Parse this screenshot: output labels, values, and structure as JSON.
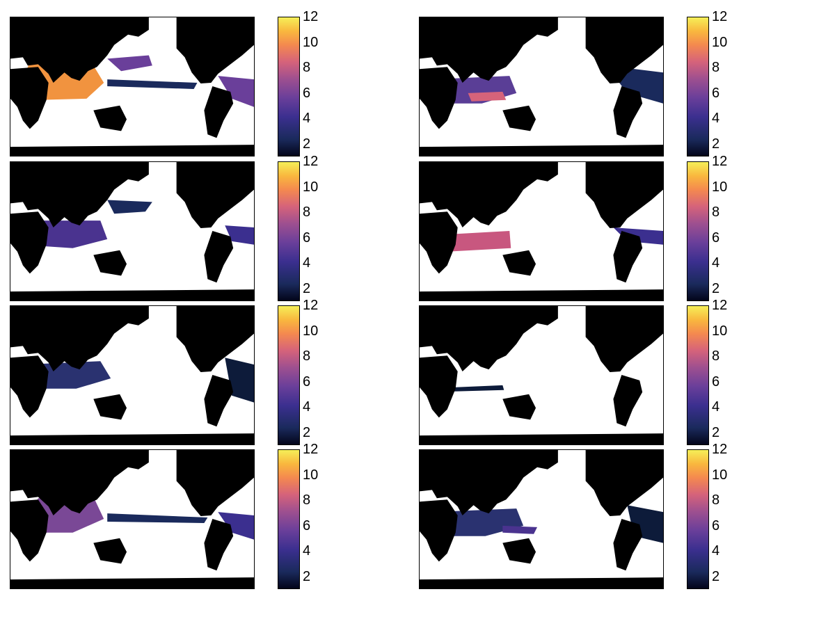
{
  "chart_data": [
    {
      "type": "heatmap",
      "panel": "row1-left",
      "colorbar": {
        "range": [
          1,
          12
        ],
        "ticks": [
          "2",
          "4",
          "6",
          "8",
          "10",
          "12"
        ]
      }
    },
    {
      "type": "heatmap",
      "panel": "row1-right",
      "colorbar": {
        "range": [
          1,
          12
        ],
        "ticks": [
          "2",
          "4",
          "6",
          "8",
          "10",
          "12"
        ]
      }
    },
    {
      "type": "heatmap",
      "panel": "row2-left",
      "colorbar": {
        "range": [
          1,
          12
        ],
        "ticks": [
          "2",
          "4",
          "6",
          "8",
          "10",
          "12"
        ]
      }
    },
    {
      "type": "heatmap",
      "panel": "row2-right",
      "colorbar": {
        "range": [
          1,
          12
        ],
        "ticks": [
          "2",
          "4",
          "6",
          "8",
          "10",
          "12"
        ]
      }
    },
    {
      "type": "heatmap",
      "panel": "row3-left",
      "colorbar": {
        "range": [
          1,
          12
        ],
        "ticks": [
          "2",
          "4",
          "6",
          "8",
          "10",
          "12"
        ]
      }
    },
    {
      "type": "heatmap",
      "panel": "row3-right",
      "colorbar": {
        "range": [
          1,
          12
        ],
        "ticks": [
          "2",
          "4",
          "6",
          "8",
          "10",
          "12"
        ]
      }
    },
    {
      "type": "heatmap",
      "panel": "row4-left",
      "colorbar": {
        "range": [
          1,
          12
        ],
        "ticks": [
          "2",
          "4",
          "6",
          "8",
          "10",
          "12"
        ]
      }
    },
    {
      "type": "heatmap",
      "panel": "row4-right",
      "colorbar": {
        "range": [
          1,
          12
        ],
        "ticks": [
          "2",
          "4",
          "6",
          "8",
          "10",
          "12"
        ]
      }
    }
  ],
  "colormap": {
    "low": "#03051a",
    "mid": "#6a3f9a",
    "high": "#f6ef58"
  },
  "land_color": "#000000",
  "missing_color": "#ffffff"
}
